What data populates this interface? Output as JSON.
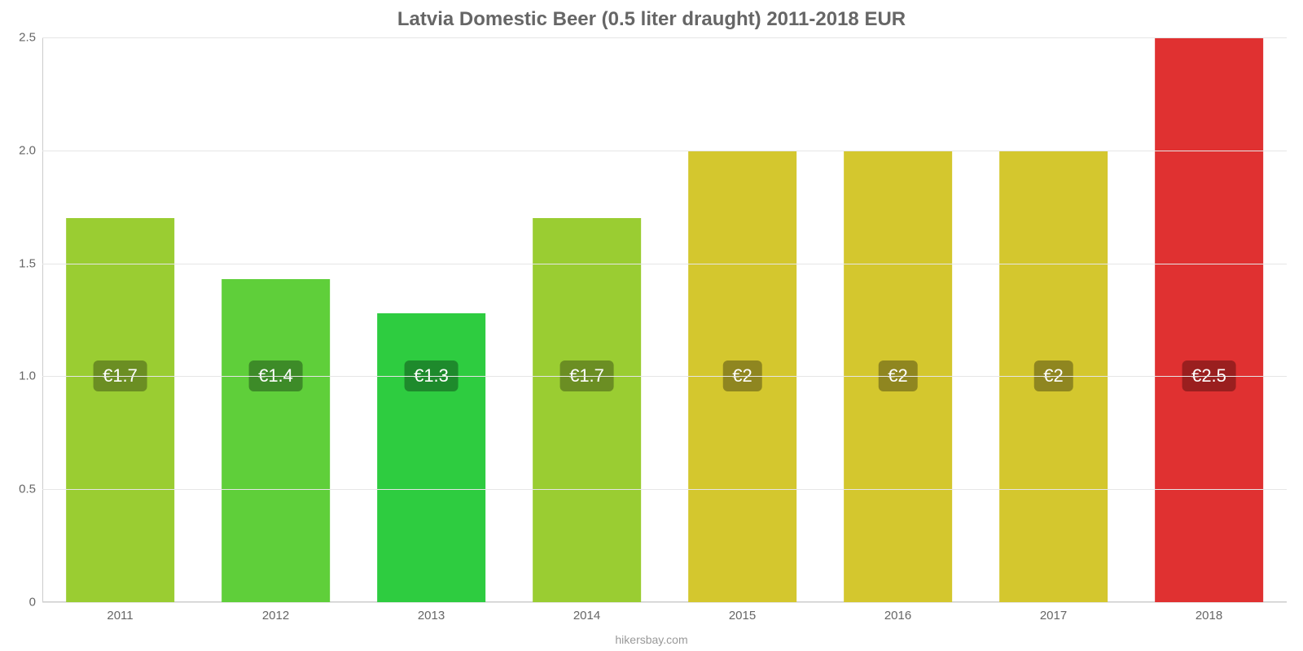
{
  "chart": {
    "type": "bar",
    "title": "Latvia Domestic Beer (0.5 liter draught) 2011-2018 EUR",
    "title_color": "#666666",
    "title_fontsize": 24,
    "title_fontweight": "bold",
    "background_color": "#ffffff",
    "grid_color": "#e6e6e6",
    "axis_tick_color": "#666666",
    "axis_line_color": "#cccccc",
    "bar_width_pct": 70,
    "ylim": [
      0,
      2.5
    ],
    "ytick_step": 0.5,
    "yticks": [
      "0",
      "0.5",
      "1.0",
      "1.5",
      "2.0",
      "2.5"
    ],
    "categories": [
      "2011",
      "2012",
      "2013",
      "2014",
      "2015",
      "2016",
      "2017",
      "2018"
    ],
    "values": [
      1.7,
      1.43,
      1.28,
      1.7,
      2.0,
      2.0,
      2.0,
      2.5
    ],
    "value_labels": [
      "€1.7",
      "€1.4",
      "€1.3",
      "€1.7",
      "€2",
      "€2",
      "€2",
      "€2.5"
    ],
    "bar_colors": [
      "#9acd32",
      "#5fcf3a",
      "#2ecc40",
      "#9acd32",
      "#d4c72e",
      "#d4c72e",
      "#d4c72e",
      "#e03131"
    ],
    "badge_colors": [
      "#6b8e23",
      "#3d8b28",
      "#1e8a2c",
      "#6b8e23",
      "#8f8620",
      "#8f8620",
      "#8f8620",
      "#9a1f1f"
    ],
    "badge_text_color": "#ffffff",
    "badge_fontsize": 22,
    "x_tick_fontsize": 15,
    "y_tick_fontsize": 15,
    "value_label_y_value": 1.0,
    "footer_text": "hikersbay.com",
    "footer_color": "#999999",
    "footer_fontsize": 14
  }
}
